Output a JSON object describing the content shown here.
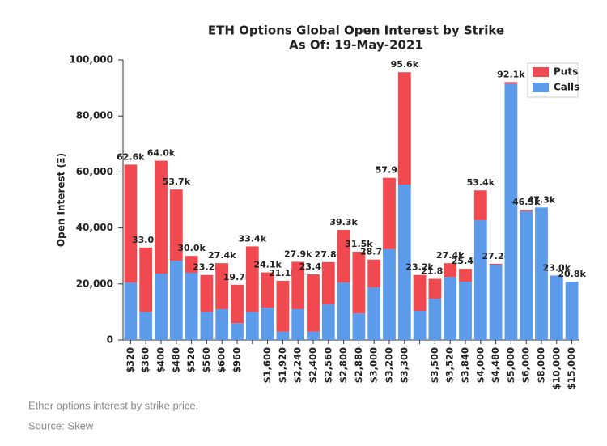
{
  "chart_data": {
    "type": "stacked_bar",
    "title": "ETH Options Global Open Interest by Strike",
    "subtitle": "As Of: 19-May-2021",
    "y_label": "Open Interest (Ξ)",
    "categories": [
      "$320",
      "$360",
      "$400",
      "$480",
      "$520",
      "$560",
      "$600",
      "$960",
      null,
      "$1,600",
      "$1,920",
      "$2,240",
      "$2,400",
      "$2,560",
      "$2,800",
      "$2,880",
      "$3,000",
      "$3,200",
      "$3,300",
      null,
      "$3,500",
      "$3,520",
      "$3,840",
      "$4,000",
      "$4,480",
      "$5,000",
      "$6,000",
      "$8,000",
      "$10,000",
      "$15,000"
    ],
    "series": [
      {
        "name": "Calls",
        "color": "#5b9bea",
        "values": [
          20500,
          10000,
          23700,
          28300,
          24000,
          10000,
          11000,
          6000,
          10000,
          11500,
          3000,
          11000,
          3000,
          12700,
          20500,
          9500,
          18800,
          32400,
          55500,
          10400,
          14700,
          22500,
          20800,
          42800,
          26800,
          91500,
          46000,
          47300,
          23000,
          20800
        ]
      },
      {
        "name": "Puts",
        "color": "#f0494f",
        "values": [
          42100,
          23000,
          40300,
          25400,
          6000,
          13200,
          16400,
          13700,
          23400,
          12600,
          18100,
          16900,
          20400,
          15100,
          18800,
          22000,
          9900,
          25500,
          40100,
          12800,
          7100,
          4900,
          4600,
          10600,
          400,
          600,
          500,
          0,
          0,
          0
        ]
      }
    ],
    "totals": [
      62600,
      33000,
      64000,
      53700,
      30000,
      23200,
      27400,
      19700,
      33400,
      24100,
      21100,
      27900,
      23400,
      27800,
      39300,
      31500,
      28700,
      57900,
      95600,
      23200,
      21800,
      27400,
      25400,
      53400,
      27200,
      92100,
      46500,
      47300,
      23000,
      20800
    ],
    "total_labels": [
      "62.6k",
      "33.0k",
      "64.0k",
      "53.7k",
      "30.0k",
      "23.2k",
      "27.4k",
      "19.7k",
      "33.4k",
      "24.1k",
      "21.1k",
      "27.9k",
      "23.4k",
      "27.8k",
      "39.3k",
      "31.5k",
      "28.7k",
      "57.9k",
      "95.6k",
      "23.2k",
      "21.8k",
      "27.4k",
      "25.4k",
      "53.4k",
      "27.2k",
      "92.1k",
      "46.5k",
      "47.3k",
      "23.0k",
      "20.8k"
    ],
    "ylim": [
      0,
      100000
    ],
    "yticks": [
      0,
      {
        "value": 20000,
        "label": "20,000"
      },
      {
        "value": 40000,
        "label": "40,000"
      },
      {
        "value": 60000,
        "label": "60,000"
      },
      {
        "value": 80000,
        "label": "80,000"
      },
      {
        "value": 100000,
        "label": "100,000"
      }
    ],
    "legend": "upper right",
    "legend_order": [
      1,
      0
    ]
  },
  "caption": {
    "text": "Ether options interest by strike price.",
    "source": "Source: Skew"
  }
}
